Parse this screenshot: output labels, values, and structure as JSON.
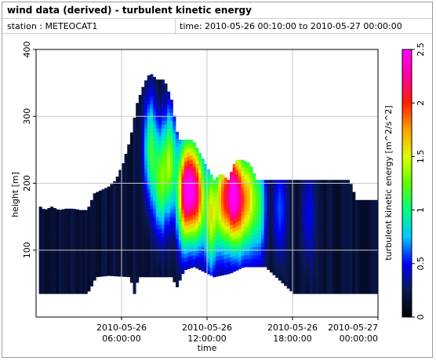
{
  "window": {
    "title": "wind data (derived) - turbulent kinetic energy",
    "station": "station : METEOCAT1",
    "time_range": "time: 2010-05-26 00:10:00 to 2010-05-27 00:00:00"
  },
  "chart_data": {
    "type": "heatmap",
    "title": "wind data (derived) - turbulent kinetic energy",
    "xlabel": "time",
    "ylabel": "height [m]",
    "colorbar_label": "turbulent kinetic energy [m^2/s^2]",
    "xlim": [
      "2010-05-26 00:10:00",
      "2010-05-27 00:00:00"
    ],
    "ylim": [
      0,
      400
    ],
    "clim": [
      0,
      2.5
    ],
    "x_ticks": [
      {
        "line1": "2010-05-26",
        "line2": "06:00:00",
        "hour": 6
      },
      {
        "line1": "2010-05-26",
        "line2": "12:00:00",
        "hour": 12
      },
      {
        "line1": "2010-05-26",
        "line2": "18:00:00",
        "hour": 18
      },
      {
        "line1": "2010-05-27",
        "line2": "00:00:00",
        "hour": 24
      }
    ],
    "y_ticks": [
      100,
      200,
      300,
      400
    ],
    "colorbar_ticks": [
      "0",
      "0.5",
      "1",
      "1.5",
      "2",
      "2.5"
    ],
    "grid": true,
    "colormap": [
      "#000000",
      "#0a1850",
      "#0000ff",
      "#00c8ff",
      "#00ff80",
      "#60ff00",
      "#e0ff00",
      "#ffa000",
      "#ff2000",
      "#ff00a0",
      "#ff00ff"
    ],
    "profile_top_m": [
      [
        0.2,
        165
      ],
      [
        0.5,
        160
      ],
      [
        1.0,
        165
      ],
      [
        1.5,
        160
      ],
      [
        2.0,
        162
      ],
      [
        2.5,
        162
      ],
      [
        3.0,
        160
      ],
      [
        3.5,
        160
      ],
      [
        4.0,
        185
      ],
      [
        4.5,
        190
      ],
      [
        5.0,
        195
      ],
      [
        5.5,
        205
      ],
      [
        6.0,
        230
      ],
      [
        6.5,
        265
      ],
      [
        7.0,
        320
      ],
      [
        7.5,
        350
      ],
      [
        7.9,
        365
      ],
      [
        8.4,
        355
      ],
      [
        8.9,
        355
      ],
      [
        9.4,
        325
      ],
      [
        9.9,
        265
      ],
      [
        10.4,
        265
      ],
      [
        10.9,
        265
      ],
      [
        11.4,
        245
      ],
      [
        11.9,
        225
      ],
      [
        12.4,
        205
      ],
      [
        12.9,
        215
      ],
      [
        13.4,
        205
      ],
      [
        13.9,
        235
      ],
      [
        14.4,
        235
      ],
      [
        14.9,
        230
      ],
      [
        15.4,
        205
      ],
      [
        15.9,
        205
      ],
      [
        16.4,
        205
      ],
      [
        16.9,
        205
      ],
      [
        17.4,
        205
      ],
      [
        17.9,
        205
      ],
      [
        18.4,
        205
      ],
      [
        18.9,
        205
      ],
      [
        19.4,
        205
      ],
      [
        19.9,
        205
      ],
      [
        20.4,
        205
      ],
      [
        20.9,
        205
      ],
      [
        21.4,
        205
      ],
      [
        21.9,
        205
      ],
      [
        22.4,
        175
      ],
      [
        22.9,
        175
      ],
      [
        23.4,
        175
      ],
      [
        23.9,
        175
      ]
    ],
    "profile_bottom_m": [
      [
        0.2,
        35
      ],
      [
        3.5,
        35
      ],
      [
        3.9,
        50
      ],
      [
        4.1,
        60
      ],
      [
        5.0,
        62
      ],
      [
        6.5,
        60
      ],
      [
        6.8,
        35
      ],
      [
        7.1,
        60
      ],
      [
        9.4,
        60
      ],
      [
        9.8,
        45
      ],
      [
        10.3,
        70
      ],
      [
        11.0,
        75
      ],
      [
        12.4,
        60
      ],
      [
        13.5,
        65
      ],
      [
        14.5,
        75
      ],
      [
        16.0,
        75
      ],
      [
        18.0,
        35
      ],
      [
        23.9,
        35
      ]
    ],
    "energy_hotspots": [
      {
        "hour": 7.9,
        "height_m": 250,
        "tke": 0.9
      },
      {
        "hour": 8.6,
        "height_m": 200,
        "tke": 1.0
      },
      {
        "hour": 9.3,
        "height_m": 230,
        "tke": 1.1
      },
      {
        "hour": 10.2,
        "height_m": 180,
        "tke": 1.4
      },
      {
        "hour": 10.7,
        "height_m": 190,
        "tke": 1.8
      },
      {
        "hour": 11.3,
        "height_m": 180,
        "tke": 1.6
      },
      {
        "hour": 12.2,
        "height_m": 150,
        "tke": 1.3
      },
      {
        "hour": 13.0,
        "height_m": 175,
        "tke": 1.5
      },
      {
        "hour": 13.7,
        "height_m": 180,
        "tke": 2.1
      },
      {
        "hour": 14.3,
        "height_m": 170,
        "tke": 1.4
      },
      {
        "hour": 14.9,
        "height_m": 175,
        "tke": 1.1
      },
      {
        "hour": 15.6,
        "height_m": 165,
        "tke": 0.8
      },
      {
        "hour": 17.0,
        "height_m": 160,
        "tke": 0.45
      },
      {
        "hour": 19.0,
        "height_m": 150,
        "tke": 0.3
      }
    ]
  }
}
